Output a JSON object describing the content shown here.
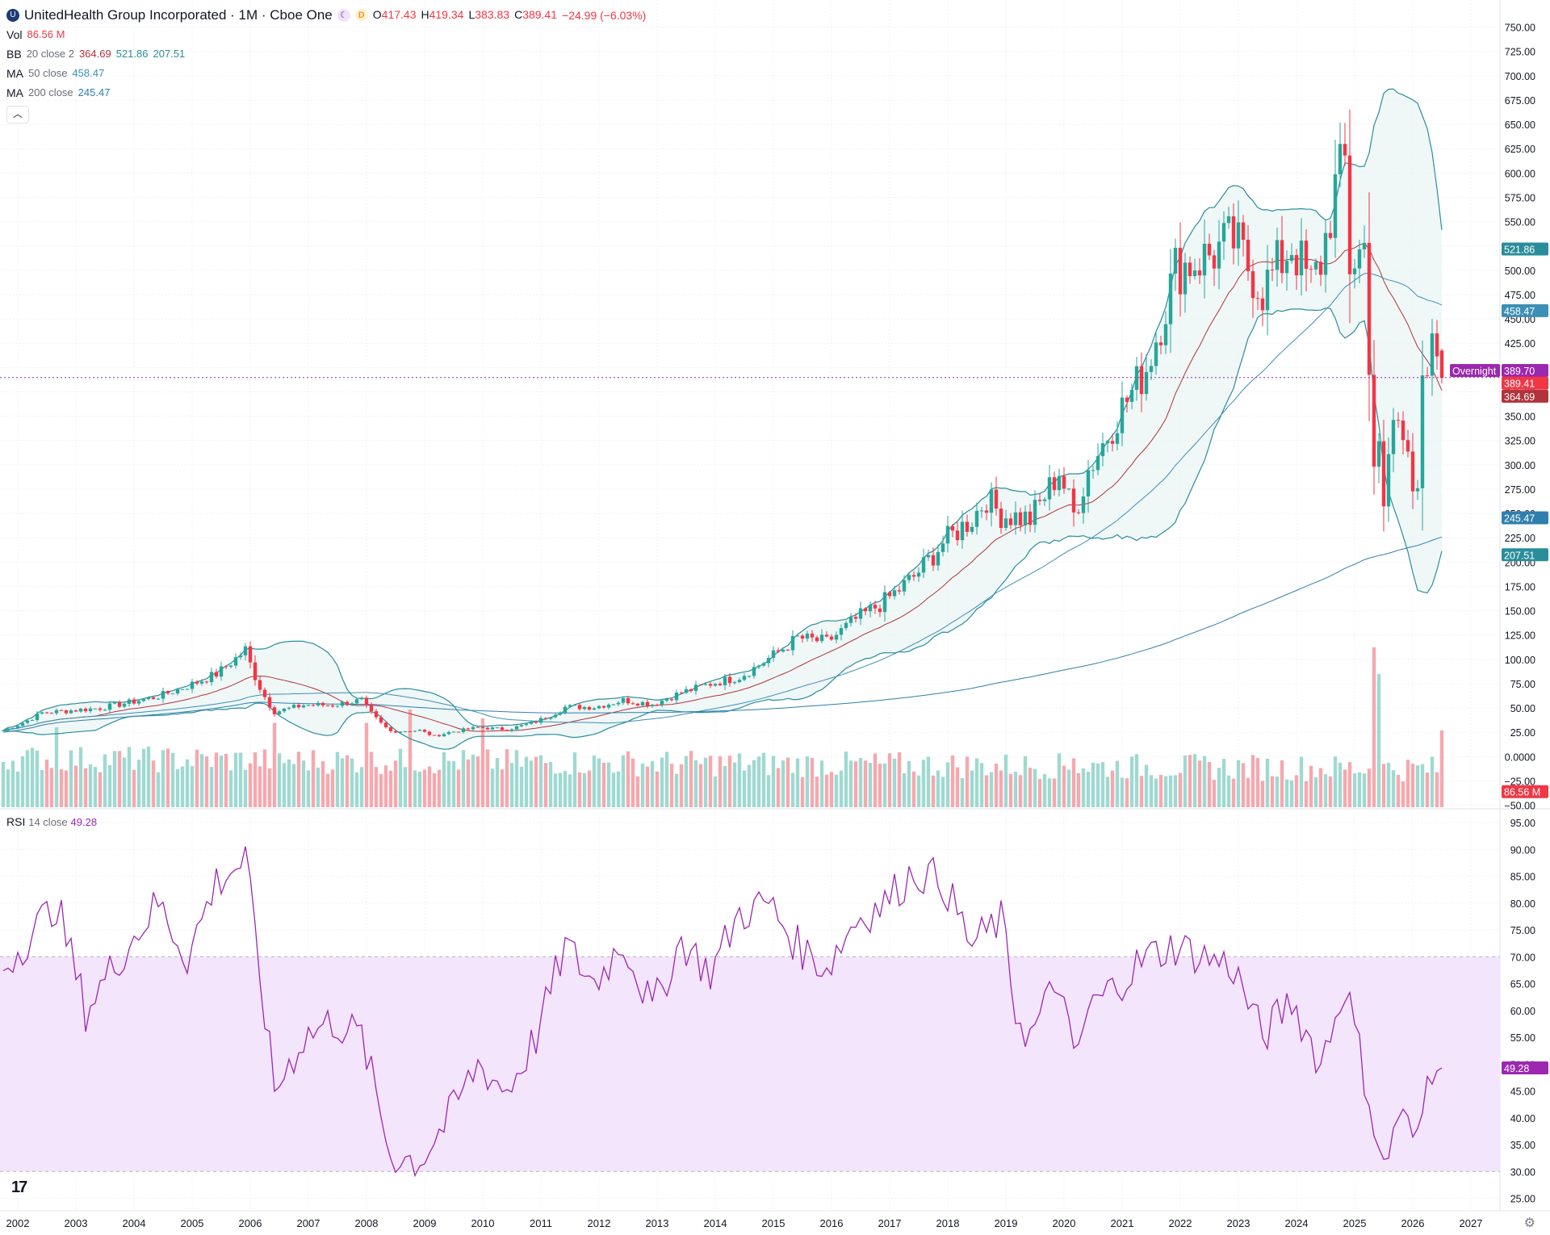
{
  "header": {
    "title": "UnitedHealth Group Incorporated · 1M · Cboe One",
    "symbol_icon": "UNH-logo-icon",
    "session_icon": "moon-icon",
    "delay_badge": "D",
    "ohlc": {
      "o_label": "O",
      "o": "417.43",
      "h_label": "H",
      "h": "419.34",
      "l_label": "L",
      "l": "383.83",
      "c_label": "C",
      "c": "389.41",
      "change": "−24.99 (−6.03%)"
    }
  },
  "indicators": {
    "vol": {
      "name": "Vol",
      "value": "86.56 M"
    },
    "bb": {
      "name": "BB",
      "params": "20 close 2",
      "basis": "364.69",
      "upper": "521.86",
      "lower": "207.51"
    },
    "ma50": {
      "name": "MA",
      "params": "50 close",
      "value": "458.47"
    },
    "ma200": {
      "name": "MA",
      "params": "200 close",
      "value": "245.47"
    },
    "rsi": {
      "name": "RSI",
      "params": "14 close",
      "value": "49.28"
    },
    "collapse_icon": "chevron-up-icon"
  },
  "colors": {
    "up": "#26a69a",
    "down": "#f23645",
    "bb_basis": "#b2333b",
    "bb_band": "#2a8d9a",
    "bb_fill": "#e8f4f4",
    "ma50": "#3d8fb5",
    "ma200": "#2f7fae",
    "rsi": "#9c27b0",
    "rsi_fill": "#f3e5fc",
    "overnight": "#9c27b0"
  },
  "price_labels": {
    "overnight_label": "Overnight",
    "overnight_value": "389.70",
    "close": "389.41",
    "bb_upper": "521.86",
    "ma50": "458.47",
    "bb_basis": "364.69",
    "ma200": "245.47",
    "bb_lower": "207.51",
    "vol": "86.56 M",
    "rsi": "49.28"
  },
  "axes": {
    "price_ticks": [
      "750.00",
      "725.00",
      "700.00",
      "675.00",
      "650.00",
      "625.00",
      "600.00",
      "575.00",
      "550.00",
      "525.00",
      "500.00",
      "475.00",
      "450.00",
      "425.00",
      "400.00",
      "375.00",
      "350.00",
      "325.00",
      "300.00",
      "275.00",
      "250.00",
      "225.00",
      "200.00",
      "175.00",
      "150.00",
      "125.00",
      "100.00",
      "75.00",
      "50.00",
      "25.00",
      "0.0000",
      "−25.00",
      "−50.00"
    ],
    "rsi_ticks": [
      "95.00",
      "90.00",
      "85.00",
      "80.00",
      "75.00",
      "70.00",
      "65.00",
      "60.00",
      "55.00",
      "50.00",
      "45.00",
      "40.00",
      "35.00",
      "30.00",
      "25.00"
    ],
    "years": [
      "2002",
      "2003",
      "2004",
      "2005",
      "2006",
      "2007",
      "2008",
      "2009",
      "2010",
      "2011",
      "2012",
      "2013",
      "2014",
      "2015",
      "2016",
      "2017",
      "2018",
      "2019",
      "2020",
      "2021",
      "2022",
      "2023",
      "2024",
      "2025",
      "2026",
      "2027"
    ]
  },
  "chart_data": [
    {
      "type": "candlestick",
      "title": "UnitedHealth Group Incorporated · 1M · Cboe One",
      "x_range": [
        "2001-10",
        "2026-12"
      ],
      "ylim": [
        -50,
        750
      ],
      "anchors": [
        {
          "t": "2001-10",
          "c": 27
        },
        {
          "t": "2002-06",
          "c": 45
        },
        {
          "t": "2003-06",
          "c": 50
        },
        {
          "t": "2004-06",
          "c": 62
        },
        {
          "t": "2005-06",
          "c": 85
        },
        {
          "t": "2005-12",
          "c": 110
        },
        {
          "t": "2006-06",
          "c": 46
        },
        {
          "t": "2006-12",
          "c": 53
        },
        {
          "t": "2007-06",
          "c": 53
        },
        {
          "t": "2007-12",
          "c": 58
        },
        {
          "t": "2008-06",
          "c": 26
        },
        {
          "t": "2008-12",
          "c": 27
        },
        {
          "t": "2009-03",
          "c": 21
        },
        {
          "t": "2009-06",
          "c": 25
        },
        {
          "t": "2009-12",
          "c": 30
        },
        {
          "t": "2010-06",
          "c": 28
        },
        {
          "t": "2010-12",
          "c": 36
        },
        {
          "t": "2011-06",
          "c": 51
        },
        {
          "t": "2011-12",
          "c": 51
        },
        {
          "t": "2012-06",
          "c": 58
        },
        {
          "t": "2012-12",
          "c": 54
        },
        {
          "t": "2013-06",
          "c": 66
        },
        {
          "t": "2013-12",
          "c": 75
        },
        {
          "t": "2014-06",
          "c": 82
        },
        {
          "t": "2014-12",
          "c": 101
        },
        {
          "t": "2015-06",
          "c": 122
        },
        {
          "t": "2015-12",
          "c": 118
        },
        {
          "t": "2016-06",
          "c": 141
        },
        {
          "t": "2016-12",
          "c": 160
        },
        {
          "t": "2017-06",
          "c": 185
        },
        {
          "t": "2017-12",
          "c": 220
        },
        {
          "t": "2018-06",
          "c": 245
        },
        {
          "t": "2018-09",
          "c": 266
        },
        {
          "t": "2018-12",
          "c": 249
        },
        {
          "t": "2019-06",
          "c": 244
        },
        {
          "t": "2019-12",
          "c": 294
        },
        {
          "t": "2020-03",
          "c": 249
        },
        {
          "t": "2020-06",
          "c": 295
        },
        {
          "t": "2020-12",
          "c": 351
        },
        {
          "t": "2021-06",
          "c": 400
        },
        {
          "t": "2021-12",
          "c": 502
        },
        {
          "t": "2022-06",
          "c": 513
        },
        {
          "t": "2022-12",
          "c": 530
        },
        {
          "t": "2023-06",
          "c": 480
        },
        {
          "t": "2023-12",
          "c": 527
        },
        {
          "t": "2024-04",
          "c": 484
        },
        {
          "t": "2024-06",
          "c": 509
        },
        {
          "t": "2024-09",
          "c": 584
        },
        {
          "t": "2024-11",
          "c": 610
        },
        {
          "t": "2024-12",
          "c": 506
        },
        {
          "t": "2025-03",
          "c": 524
        },
        {
          "t": "2025-04",
          "c": 411
        },
        {
          "t": "2025-05",
          "c": 302
        },
        {
          "t": "2025-06",
          "c": 312
        },
        {
          "t": "2025-07",
          "c": 250
        },
        {
          "t": "2025-08",
          "c": 310
        },
        {
          "t": "2025-09",
          "c": 345
        },
        {
          "t": "2025-10",
          "c": 341
        },
        {
          "t": "2025-11",
          "c": 330
        },
        {
          "t": "2025-12",
          "c": 330
        },
        {
          "t": "2026-01",
          "c": 285
        },
        {
          "t": "2026-02",
          "c": 280
        },
        {
          "t": "2026-03",
          "c": 373
        },
        {
          "t": "2026-04",
          "c": 380
        },
        {
          "t": "2026-05",
          "c": 414
        },
        {
          "t": "2026-06",
          "c": 414
        },
        {
          "t": "2026-07",
          "c": 389.41
        }
      ]
    },
    {
      "type": "bar",
      "name": "Vol",
      "units": "M",
      "ylim_note": "volume histogram overlaid on price pane",
      "peaks": [
        {
          "t": "2002-09",
          "v": 90
        },
        {
          "t": "2006-06",
          "v": 95
        },
        {
          "t": "2008-01",
          "v": 95
        },
        {
          "t": "2008-10",
          "v": 110
        },
        {
          "t": "2010-01",
          "v": 100
        },
        {
          "t": "2020-03",
          "v": 55
        },
        {
          "t": "2025-05",
          "v": 180
        },
        {
          "t": "2025-06",
          "v": 150
        },
        {
          "t": "2026-07",
          "v": 86.56
        }
      ]
    },
    {
      "type": "line",
      "name": "RSI",
      "ylim": [
        25,
        95
      ],
      "levels": [
        70,
        30
      ],
      "anchors": [
        {
          "t": "2001-10",
          "v": 68
        },
        {
          "t": "2002-09",
          "v": 80
        },
        {
          "t": "2003-03",
          "v": 60
        },
        {
          "t": "2003-10",
          "v": 70
        },
        {
          "t": "2004-06",
          "v": 80
        },
        {
          "t": "2004-12",
          "v": 70
        },
        {
          "t": "2005-06",
          "v": 84
        },
        {
          "t": "2005-12",
          "v": 88
        },
        {
          "t": "2006-06",
          "v": 45
        },
        {
          "t": "2006-12",
          "v": 55
        },
        {
          "t": "2007-06",
          "v": 58
        },
        {
          "t": "2007-12",
          "v": 55
        },
        {
          "t": "2008-06",
          "v": 33
        },
        {
          "t": "2008-12",
          "v": 32
        },
        {
          "t": "2009-06",
          "v": 40
        },
        {
          "t": "2009-12",
          "v": 50
        },
        {
          "t": "2010-06",
          "v": 45
        },
        {
          "t": "2010-12",
          "v": 55
        },
        {
          "t": "2011-06",
          "v": 72
        },
        {
          "t": "2011-12",
          "v": 65
        },
        {
          "t": "2012-06",
          "v": 73
        },
        {
          "t": "2012-12",
          "v": 60
        },
        {
          "t": "2013-06",
          "v": 73
        },
        {
          "t": "2013-12",
          "v": 67
        },
        {
          "t": "2014-06",
          "v": 78
        },
        {
          "t": "2014-12",
          "v": 80
        },
        {
          "t": "2015-06",
          "v": 72
        },
        {
          "t": "2015-12",
          "v": 68
        },
        {
          "t": "2016-06",
          "v": 77
        },
        {
          "t": "2016-12",
          "v": 80
        },
        {
          "t": "2017-06",
          "v": 86
        },
        {
          "t": "2017-12",
          "v": 84
        },
        {
          "t": "2018-06",
          "v": 72
        },
        {
          "t": "2018-12",
          "v": 77
        },
        {
          "t": "2019-03",
          "v": 60
        },
        {
          "t": "2019-06",
          "v": 55
        },
        {
          "t": "2019-12",
          "v": 66
        },
        {
          "t": "2020-03",
          "v": 50
        },
        {
          "t": "2020-06",
          "v": 60
        },
        {
          "t": "2020-12",
          "v": 65
        },
        {
          "t": "2021-06",
          "v": 70
        },
        {
          "t": "2021-12",
          "v": 72
        },
        {
          "t": "2022-06",
          "v": 70
        },
        {
          "t": "2022-12",
          "v": 68
        },
        {
          "t": "2023-06",
          "v": 55
        },
        {
          "t": "2023-12",
          "v": 62
        },
        {
          "t": "2024-06",
          "v": 50
        },
        {
          "t": "2024-11",
          "v": 65
        },
        {
          "t": "2025-03",
          "v": 48
        },
        {
          "t": "2025-07",
          "v": 30
        },
        {
          "t": "2025-10",
          "v": 41
        },
        {
          "t": "2026-02",
          "v": 35
        },
        {
          "t": "2026-04",
          "v": 47
        },
        {
          "t": "2026-06",
          "v": 52
        },
        {
          "t": "2026-07",
          "v": 49.28
        }
      ]
    }
  ]
}
